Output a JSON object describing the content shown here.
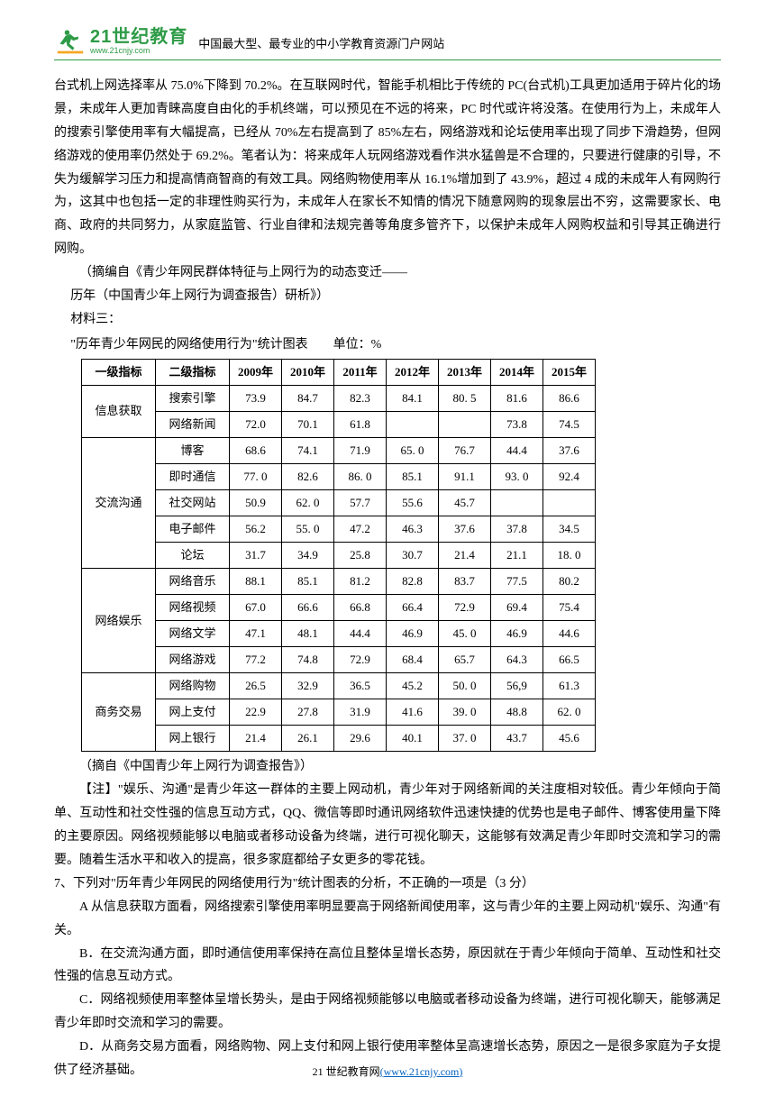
{
  "header": {
    "logo_cn": "21世纪教育",
    "logo_en": "www.21cnjy.com",
    "subtitle": "中国最大型、最专业的中小学教育资源门户网站"
  },
  "body": {
    "p1": "台式机上网选择率从 75.0%下降到 70.2%。在互联网时代，智能手机相比于传统的 PC(台式机)工具更加适用于碎片化的场景，未成年人更加青睐高度自由化的手机终端，可以预见在不远的将来，PC 时代或许将没落。在使用行为上，未成年人的搜索引擎使用率有大幅提高，已经从 70%左右提高到了 85%左右，网络游戏和论坛使用率出现了同步下滑趋势，但网络游戏的使用率仍然处于 69.2%。笔者认为：将来成年人玩网络游戏看作洪水猛兽是不合理的，只要进行健康的引导，不失为缓解学习压力和提高情商智商的有效工具。网络购物使用率从 16.1%增加到了 43.9%，超过 4 成的未成年人有网购行为，这其中也包括一定的非理性购买行为，未成年人在家长不知情的情况下随意网购的现象层出不穷，这需要家长、电商、政府的共同努力，从家庭监管、行业自律和法规完善等角度多管齐下，以保护未成年人网购权益和引导其正确进行网购。",
    "p2": "（摘编自《青少年网民群体特征与上网行为的动态变迁——",
    "p3": "历年（中国青少年上网行为调查报告）研析》）",
    "p4": "材料三：",
    "table_title": "\"历年青少年网民的网络使用行为\"统计图表　　单位：%",
    "cite": "（摘自《中国青少年上网行为调查报告》）",
    "note": "【注】\"娱乐、沟通\"是青少年这一群体的主要上网动机，青少年对于网络新闻的关注度相对较低。青少年倾向于简单、互动性和社交性强的信息互动方式，QQ、微信等即时通讯网络软件迅速快捷的优势也是电子邮件、博客使用量下降的主要原因。网络视频能够以电脑或者移动设备为终端，进行可视化聊天，这能够有效满足青少年即时交流和学习的需要。随着生活水平和收入的提高，很多家庭都给子女更多的零花钱。",
    "q7": "7、下列对\"历年青少年网民的网络使用行为\"统计图表的分析，不正确的一项是（3 分）",
    "optA": "A 从信息获取方面看，网络搜索引擎使用率明显要高于网络新闻使用率，这与青少年的主要上网动机\"娱乐、沟通\"有关。",
    "optB": "B．在交流沟通方面，即时通信使用率保持在高位且整体呈增长态势，原因就在于青少年倾向于简单、互动性和社交性强的信息互动方式。",
    "optC": "C．网络视频使用率整体呈增长势头，是由于网络视频能够以电脑或者移动设备为终端，进行可视化聊天，能够满足青少年即时交流和学习的需要。",
    "optD": "D．从商务交易方面看，网络购物、网上支付和网上银行使用率整体呈高速增长态势，原因之一是很多家庭为子女提供了经济基础。"
  },
  "table": {
    "headers": [
      "一级指标",
      "二级指标",
      "2009年",
      "2010年",
      "2011年",
      "2012年",
      "2013年",
      "2014年",
      "2015年"
    ],
    "groups": [
      {
        "cat": "信息获取",
        "rows": [
          {
            "sub": "搜索引擎",
            "v": [
              "73.9",
              "84.7",
              "82.3",
              "84.1",
              "80. 5",
              "81.6",
              "86.6"
            ]
          },
          {
            "sub": "网络新闻",
            "v": [
              "72.0",
              "70.1",
              "61.8",
              "",
              "",
              "73.8",
              "74.5"
            ]
          }
        ]
      },
      {
        "cat": "交流沟通",
        "rows": [
          {
            "sub": "博客",
            "v": [
              "68.6",
              "74.1",
              "71.9",
              "65. 0",
              "76.7",
              "44.4",
              "37.6"
            ]
          },
          {
            "sub": "即时通信",
            "v": [
              "77. 0",
              "82.6",
              "86. 0",
              "85.1",
              "91.1",
              "93. 0",
              "92.4"
            ]
          },
          {
            "sub": "社交网站",
            "v": [
              "50.9",
              "62. 0",
              "57.7",
              "55.6",
              "45.7",
              "",
              ""
            ]
          },
          {
            "sub": "电子邮件",
            "v": [
              "56.2",
              "55. 0",
              "47.2",
              "46.3",
              "37.6",
              "37.8",
              "34.5"
            ]
          },
          {
            "sub": "论坛",
            "v": [
              "31.7",
              "34.9",
              "25.8",
              "30.7",
              "21.4",
              "21.1",
              "18. 0"
            ]
          }
        ]
      },
      {
        "cat": "网络娱乐",
        "rows": [
          {
            "sub": "网络音乐",
            "v": [
              "88.1",
              "85.1",
              "81.2",
              "82.8",
              "83.7",
              "77.5",
              "80.2"
            ]
          },
          {
            "sub": "网络视频",
            "v": [
              "67.0",
              "66.6",
              "66.8",
              "66.4",
              "72.9",
              "69.4",
              "75.4"
            ]
          },
          {
            "sub": "网络文学",
            "v": [
              "47.1",
              "48.1",
              "44.4",
              "46.9",
              "45. 0",
              "46.9",
              "44.6"
            ]
          },
          {
            "sub": "网络游戏",
            "v": [
              "77.2",
              "74.8",
              "72.9",
              "68.4",
              "65.7",
              "64.3",
              "66.5"
            ]
          }
        ]
      },
      {
        "cat": "商务交易",
        "rows": [
          {
            "sub": "网络购物",
            "v": [
              "26.5",
              "32.9",
              "36.5",
              "45.2",
              "50. 0",
              "56,9",
              "61.3"
            ]
          },
          {
            "sub": "网上支付",
            "v": [
              "22.9",
              "27.8",
              "31.9",
              "41.6",
              "39. 0",
              "48.8",
              "62. 0"
            ]
          },
          {
            "sub": "网上银行",
            "v": [
              "21.4",
              "26.1",
              "29.6",
              "40.1",
              "37. 0",
              "43.7",
              "45.6"
            ]
          }
        ]
      }
    ]
  },
  "footer": {
    "prefix": "21 世纪教育网",
    "link": "(www.21cnjy.com)"
  },
  "colors": {
    "brand": "#2e9b47",
    "link": "#0563c1",
    "text": "#000000",
    "background": "#ffffff"
  }
}
